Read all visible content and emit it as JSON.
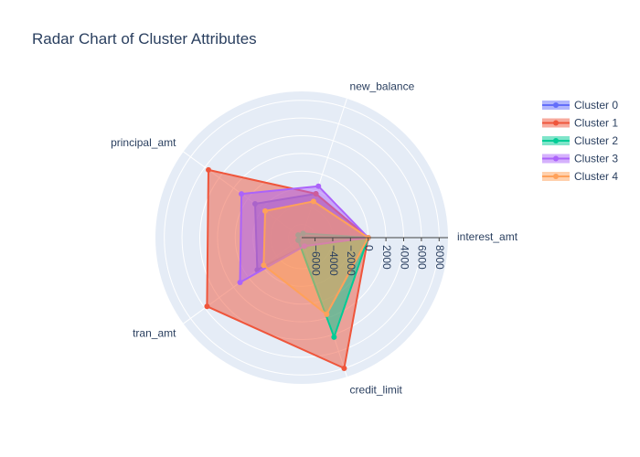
{
  "chart_data": {
    "type": "radar",
    "title": "Radar Chart of Cluster Attributes",
    "theta": [
      "interest_amt",
      "new_balance",
      "principal_amt",
      "tran_amt",
      "credit_limit"
    ],
    "radial_range": [
      -7500,
      9000
    ],
    "radial_ticks": [
      -6000,
      -4000,
      -2000,
      0,
      2000,
      4000,
      6000,
      8000
    ],
    "grid": true,
    "legend_position": "top-right",
    "series": [
      {
        "name": "Cluster 0",
        "color": "#636efa",
        "values": [
          0,
          -2300,
          -1000,
          -1300,
          -6500
        ]
      },
      {
        "name": "Cluster 1",
        "color": "#ef553b",
        "values": [
          0,
          -2300,
          5500,
          5700,
          8000
        ]
      },
      {
        "name": "Cluster 2",
        "color": "#00cc96",
        "values": [
          0,
          -7000,
          -7000,
          -7000,
          4300
        ]
      },
      {
        "name": "Cluster 3",
        "color": "#ab63fa",
        "values": [
          0,
          -1400,
          900,
          1100,
          -6500
        ]
      },
      {
        "name": "Cluster 4",
        "color": "#ffa15a",
        "values": [
          0,
          -3200,
          -2400,
          -2200,
          1600
        ]
      }
    ]
  }
}
